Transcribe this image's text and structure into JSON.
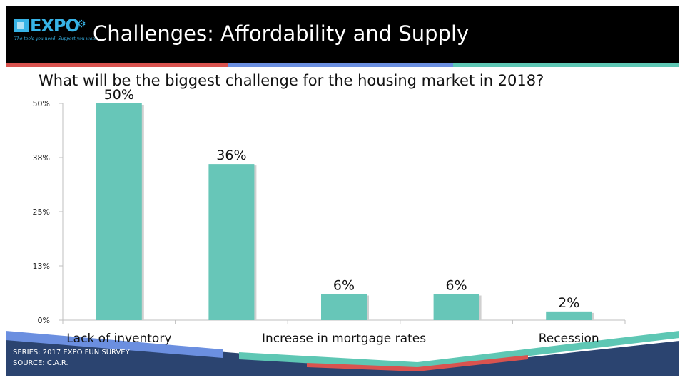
{
  "header": {
    "title": "Challenges: Affordability and Supply",
    "logo_text": "EXPO",
    "logo_tagline": "The tools you need. Support you want.",
    "background_color": "#000000",
    "title_color": "#ffffff",
    "logo_color": "#37b3e6"
  },
  "accent_colors": [
    "#d9534f",
    "#6b8fe0",
    "#5ec7b4"
  ],
  "question": "What will be the biggest challenge for the housing market in 2018?",
  "footer": {
    "series": "SERIES: 2017 EXPO FUN SURVEY",
    "source": "SOURCE:  C.A.R.",
    "band_color": "#2b4470"
  },
  "chart_data": {
    "type": "bar",
    "title": "",
    "xlabel": "",
    "ylabel": "",
    "categories": [
      "Lack of inventory",
      "",
      "Increase in mortgage rates",
      "",
      "Recession"
    ],
    "x_tick_labels": [
      "Lack of inventory",
      "Increase in mortgage rates",
      "Recession"
    ],
    "values": [
      50,
      36,
      6,
      6,
      2
    ],
    "data_labels": [
      "50%",
      "36%",
      "6%",
      "6%",
      "2%"
    ],
    "ylim": [
      0,
      50
    ],
    "yticks": [
      0,
      12.5,
      25,
      37.5,
      50
    ],
    "ytick_labels": [
      "0%",
      "13%",
      "25%",
      "38%",
      "50%"
    ],
    "bar_color": "#67c6b8",
    "grid": false,
    "legend": "none"
  }
}
